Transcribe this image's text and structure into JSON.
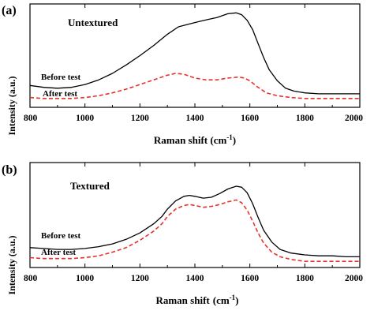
{
  "chart_data": [
    {
      "panel_label": "(a)",
      "type": "line",
      "title": "Untextured",
      "xlabel": "Raman shift (cm",
      "xlabel_sup": "-1",
      "xlabel_close": ")",
      "ylabel": "Intensity (a.u.)",
      "xlim": [
        800,
        2000
      ],
      "ylim": [
        0,
        1
      ],
      "xticks": [
        800,
        1000,
        1200,
        1400,
        1600,
        1800,
        2000
      ],
      "grid": false,
      "series": [
        {
          "name": "Before test",
          "color": "#000000",
          "dash": "solid",
          "x": [
            800,
            850,
            900,
            950,
            1000,
            1050,
            1100,
            1150,
            1200,
            1250,
            1300,
            1340,
            1380,
            1420,
            1450,
            1480,
            1520,
            1550,
            1570,
            1590,
            1610,
            1630,
            1650,
            1670,
            1700,
            1730,
            1760,
            1800,
            1850,
            1900,
            1950,
            2000
          ],
          "y": [
            0.15,
            0.13,
            0.12,
            0.13,
            0.16,
            0.21,
            0.28,
            0.37,
            0.47,
            0.58,
            0.7,
            0.78,
            0.81,
            0.84,
            0.86,
            0.88,
            0.92,
            0.93,
            0.91,
            0.85,
            0.75,
            0.6,
            0.45,
            0.32,
            0.2,
            0.12,
            0.09,
            0.07,
            0.06,
            0.06,
            0.06,
            0.06
          ]
        },
        {
          "name": "After test",
          "color": "#e8322a",
          "dash": "dashed",
          "x": [
            800,
            850,
            900,
            950,
            1000,
            1050,
            1100,
            1150,
            1200,
            1250,
            1300,
            1330,
            1360,
            1400,
            1440,
            1480,
            1520,
            1560,
            1580,
            1600,
            1630,
            1660,
            1700,
            1750,
            1800,
            1850,
            1900,
            1950,
            2000
          ],
          "y": [
            0.02,
            0.01,
            0.01,
            0.01,
            0.02,
            0.04,
            0.07,
            0.11,
            0.16,
            0.21,
            0.26,
            0.28,
            0.27,
            0.23,
            0.21,
            0.21,
            0.23,
            0.24,
            0.23,
            0.2,
            0.13,
            0.07,
            0.04,
            0.02,
            0.01,
            0.01,
            0.01,
            0.01,
            0.01
          ]
        }
      ]
    },
    {
      "panel_label": "(b)",
      "type": "line",
      "title": "Textured",
      "xlabel": "Raman shift",
      "xlabel_sup": "-1",
      "xlabel_open": "(cm",
      "xlabel_close": ")",
      "ylabel": "Intensity (a.u.)",
      "xlim": [
        800,
        2000
      ],
      "ylim": [
        0,
        1
      ],
      "xticks": [
        800,
        1000,
        1200,
        1400,
        1600,
        1800,
        2000
      ],
      "grid": false,
      "series": [
        {
          "name": "Before test",
          "color": "#000000",
          "dash": "solid",
          "x": [
            800,
            850,
            900,
            950,
            1000,
            1050,
            1100,
            1150,
            1200,
            1230,
            1250,
            1280,
            1300,
            1330,
            1360,
            1380,
            1400,
            1430,
            1460,
            1490,
            1520,
            1550,
            1570,
            1590,
            1610,
            1630,
            1650,
            1680,
            1710,
            1750,
            1800,
            1850,
            1900,
            1950,
            2000
          ],
          "y": [
            0.14,
            0.13,
            0.12,
            0.12,
            0.13,
            0.15,
            0.18,
            0.23,
            0.3,
            0.36,
            0.4,
            0.48,
            0.56,
            0.65,
            0.7,
            0.71,
            0.7,
            0.68,
            0.69,
            0.73,
            0.78,
            0.81,
            0.8,
            0.74,
            0.62,
            0.47,
            0.33,
            0.2,
            0.12,
            0.08,
            0.06,
            0.05,
            0.05,
            0.04,
            0.04
          ]
        },
        {
          "name": "After test",
          "color": "#e8322a",
          "dash": "dashed",
          "x": [
            800,
            850,
            900,
            950,
            1000,
            1050,
            1100,
            1150,
            1200,
            1250,
            1280,
            1300,
            1330,
            1360,
            1380,
            1400,
            1430,
            1460,
            1490,
            1520,
            1550,
            1570,
            1590,
            1610,
            1630,
            1650,
            1680,
            1710,
            1750,
            1800,
            1850,
            1900,
            1950,
            2000
          ],
          "y": [
            0.03,
            0.02,
            0.02,
            0.02,
            0.03,
            0.05,
            0.09,
            0.14,
            0.22,
            0.32,
            0.4,
            0.48,
            0.56,
            0.6,
            0.61,
            0.6,
            0.58,
            0.59,
            0.61,
            0.64,
            0.66,
            0.63,
            0.55,
            0.43,
            0.3,
            0.19,
            0.09,
            0.04,
            0.01,
            -0.01,
            -0.01,
            -0.01,
            -0.01,
            -0.01
          ]
        }
      ]
    }
  ]
}
